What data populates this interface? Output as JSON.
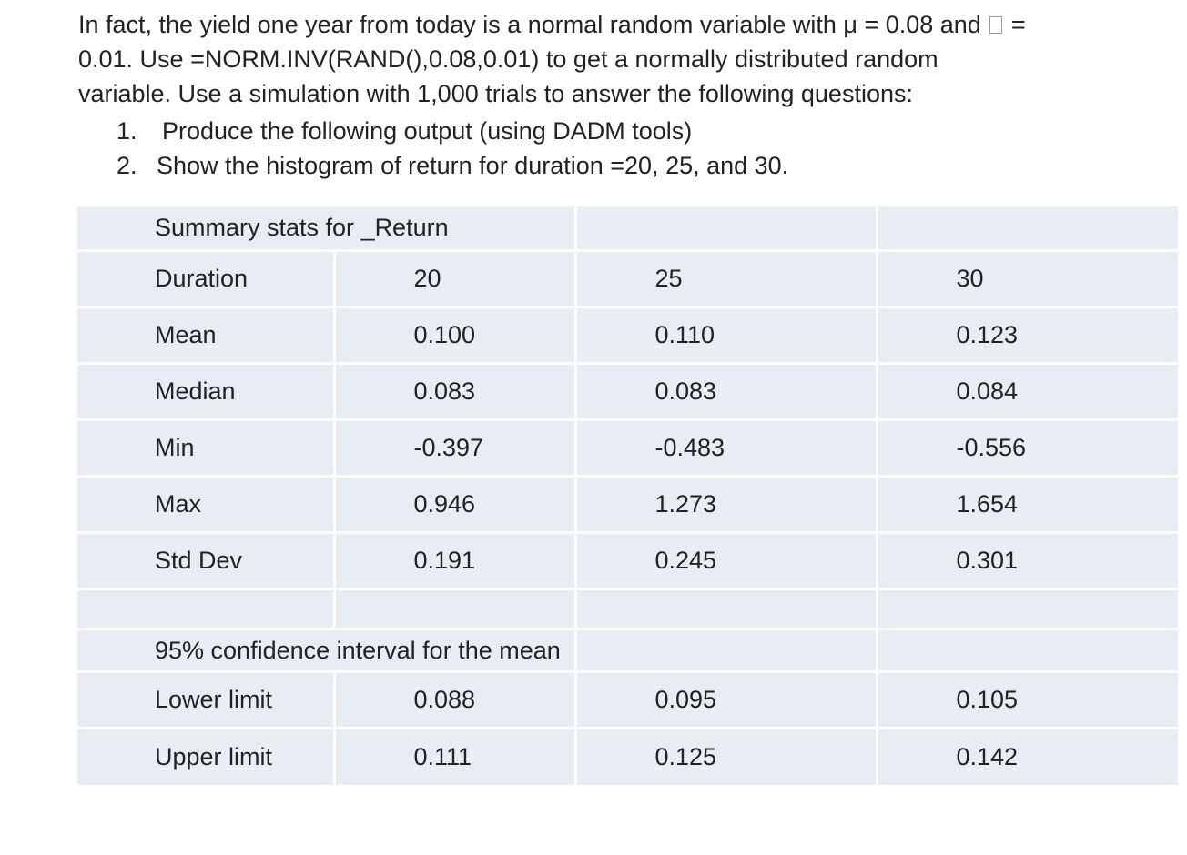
{
  "intro": {
    "line1_a": "In fact, the yield one year from today is a normal random variable with μ = 0.08 and",
    "line1_b": "=",
    "line2": "0.01. Use =NORM.INV(RAND(),0.08,0.01) to get a normally distributed random",
    "line3": "variable. Use a simulation with 1,000 trials to answer the following questions:"
  },
  "questions": [
    {
      "number": "1.",
      "text": "Produce the following output (using DADM tools)"
    },
    {
      "number": "2.",
      "text": "Show the histogram of return for duration =20, 25, and 30."
    }
  ],
  "table": {
    "title": "Summary stats for _Return",
    "header_label": "Duration",
    "durations": [
      "20",
      "25",
      "30"
    ],
    "rows": [
      {
        "label": "Mean",
        "values": [
          "0.100",
          "0.110",
          "0.123"
        ]
      },
      {
        "label": "Median",
        "values": [
          "0.083",
          "0.083",
          "0.084"
        ]
      },
      {
        "label": "Min",
        "values": [
          "-0.397",
          "-0.483",
          "-0.556"
        ]
      },
      {
        "label": "Max",
        "values": [
          "0.946",
          "1.273",
          "1.654"
        ]
      },
      {
        "label": "Std Dev",
        "values": [
          "0.191",
          "0.245",
          "0.301"
        ]
      }
    ],
    "ci_title": "95% confidence interval for the mean",
    "ci_rows": [
      {
        "label": "Lower limit",
        "values": [
          "0.088",
          "0.095",
          "0.105"
        ]
      },
      {
        "label": "Upper limit",
        "values": [
          "0.111",
          "0.125",
          "0.142"
        ]
      }
    ]
  }
}
